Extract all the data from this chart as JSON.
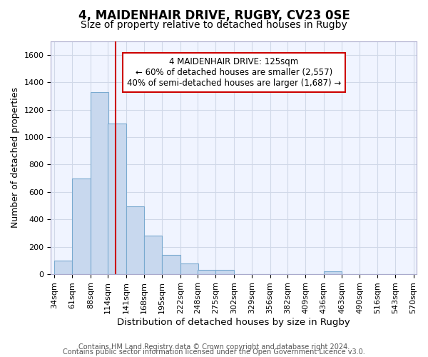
{
  "title1": "4, MAIDENHAIR DRIVE, RUGBY, CV23 0SE",
  "title2": "Size of property relative to detached houses in Rugby",
  "xlabel": "Distribution of detached houses by size in Rugby",
  "ylabel": "Number of detached properties",
  "bar_left_edges": [
    34,
    61,
    88,
    114,
    141,
    168,
    195,
    222,
    248,
    275,
    302,
    329,
    356,
    382,
    409,
    436,
    463,
    490,
    516,
    543
  ],
  "bar_heights": [
    100,
    700,
    1330,
    1100,
    495,
    280,
    140,
    80,
    30,
    30,
    0,
    0,
    0,
    0,
    0,
    20,
    0,
    0,
    0,
    0
  ],
  "bin_width": 27,
  "x_ticks": [
    34,
    61,
    88,
    114,
    141,
    168,
    195,
    222,
    248,
    275,
    302,
    329,
    356,
    382,
    409,
    436,
    463,
    490,
    516,
    543,
    570
  ],
  "x_tick_labels": [
    "34sqm",
    "61sqm",
    "88sqm",
    "114sqm",
    "141sqm",
    "168sqm",
    "195sqm",
    "222sqm",
    "248sqm",
    "275sqm",
    "302sqm",
    "329sqm",
    "356sqm",
    "382sqm",
    "409sqm",
    "436sqm",
    "463sqm",
    "490sqm",
    "516sqm",
    "543sqm",
    "570sqm"
  ],
  "y_ticks": [
    0,
    200,
    400,
    600,
    800,
    1000,
    1200,
    1400,
    1600
  ],
  "ylim": [
    0,
    1700
  ],
  "bar_color": "#c8d8ee",
  "bar_edge_color": "#7aaad0",
  "vline_x": 125,
  "vline_color": "#cc0000",
  "annotation_text": "4 MAIDENHAIR DRIVE: 125sqm\n← 60% of detached houses are smaller (2,557)\n40% of semi-detached houses are larger (1,687) →",
  "annotation_box_color": "#ffffff",
  "annotation_box_edge": "#cc0000",
  "footer1": "Contains HM Land Registry data © Crown copyright and database right 2024.",
  "footer2": "Contains public sector information licensed under the Open Government Licence v3.0.",
  "bg_color": "#ffffff",
  "plot_bg_color": "#f0f4ff",
  "grid_color": "#d0d8e8",
  "title1_fontsize": 12,
  "title2_fontsize": 10,
  "xlabel_fontsize": 9.5,
  "ylabel_fontsize": 9,
  "tick_fontsize": 8,
  "footer_fontsize": 7
}
